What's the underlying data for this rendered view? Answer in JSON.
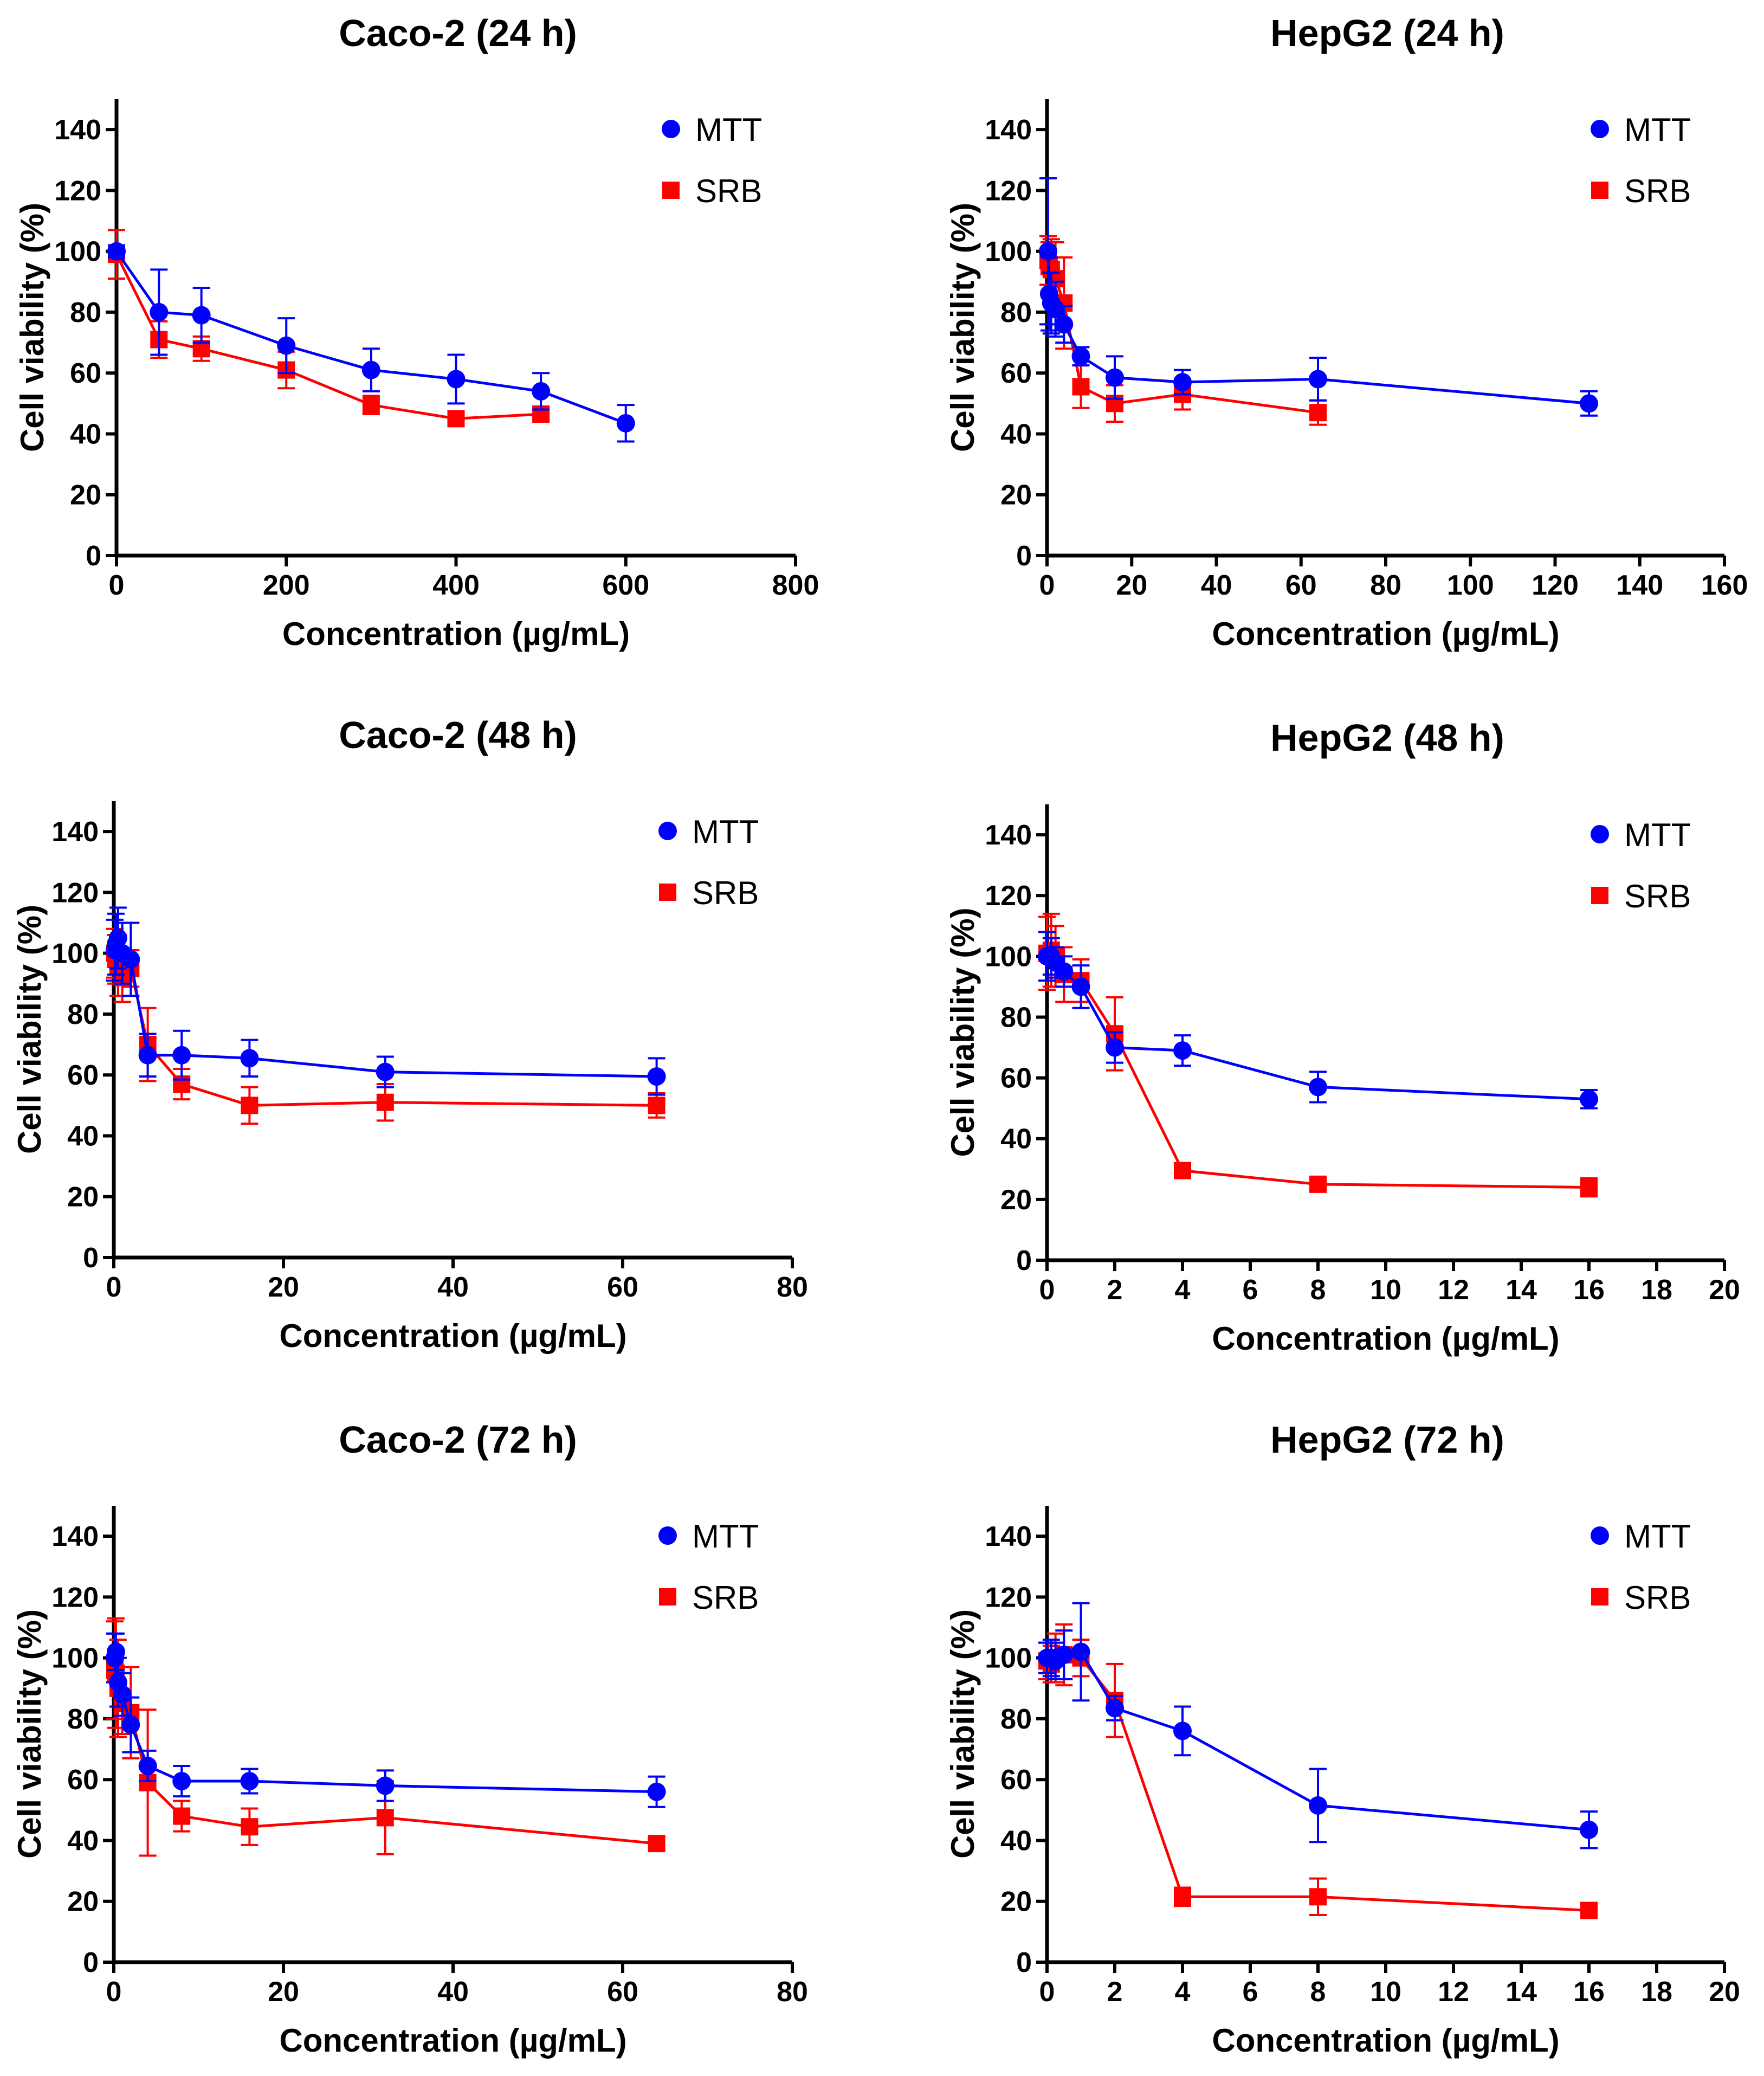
{
  "colors": {
    "mtt": "#0000ff",
    "srb": "#ff0000"
  },
  "legend": {
    "mtt": "MTT",
    "srb": "SRB"
  },
  "chart_data": [
    {
      "type": "line",
      "title": "Caco-2 (24 h)",
      "xlabel": "Concentration (µg/mL)",
      "ylabel": "Cell viability (%)",
      "xlim": [
        0,
        800
      ],
      "xticks": [
        0,
        200,
        400,
        600,
        800
      ],
      "ylim": [
        0,
        150
      ],
      "yticks": [
        0,
        20,
        40,
        60,
        80,
        100,
        120,
        140
      ],
      "legend_position": "top-right",
      "series": [
        {
          "name": "MTT",
          "x": [
            0,
            50,
            100,
            200,
            300,
            400,
            500,
            600
          ],
          "y": [
            100,
            80,
            79,
            69,
            61,
            58,
            54,
            43.5
          ],
          "err": [
            2,
            14,
            9,
            9,
            7,
            8,
            6,
            6
          ]
        },
        {
          "name": "SRB",
          "x": [
            0,
            50,
            100,
            200,
            300,
            400,
            500
          ],
          "y": [
            99,
            71,
            68,
            61,
            49.5,
            45,
            46.5
          ],
          "err": [
            8,
            6,
            4,
            6,
            3,
            2,
            2
          ]
        }
      ]
    },
    {
      "type": "line",
      "title": "HepG2 (24 h)",
      "xlabel": "Concentration (µg/mL)",
      "ylabel": "Cell viability (%)",
      "xlim": [
        0,
        160
      ],
      "xticks": [
        0,
        20,
        40,
        60,
        80,
        100,
        120,
        140,
        160
      ],
      "ylim": [
        0,
        150
      ],
      "yticks": [
        0,
        20,
        40,
        60,
        80,
        100,
        120,
        140
      ],
      "legend_position": "top-right",
      "series": [
        {
          "name": "MTT",
          "x": [
            0.25,
            0.5,
            1,
            2,
            4,
            8,
            16,
            32,
            64,
            128
          ],
          "y": [
            100,
            86,
            83,
            81,
            76,
            65.5,
            58.5,
            57,
            58,
            50
          ],
          "err": [
            24,
            12,
            10,
            9,
            6,
            3,
            7,
            4,
            7,
            4
          ]
        },
        {
          "name": "SRB",
          "x": [
            0.25,
            0.5,
            1,
            2,
            4,
            8,
            16,
            32,
            64
          ],
          "y": [
            97,
            95,
            94,
            91,
            83,
            55.5,
            50,
            53,
            47
          ],
          "err": [
            8,
            8,
            10,
            12,
            15,
            7,
            6,
            5,
            4
          ]
        }
      ]
    },
    {
      "type": "line",
      "title": "Caco-2 (48 h)",
      "xlabel": "Concentration (µg/mL)",
      "ylabel": "Cell viability (%)",
      "xlim": [
        0,
        80
      ],
      "xticks": [
        0,
        20,
        40,
        60,
        80
      ],
      "ylim": [
        0,
        150
      ],
      "yticks": [
        0,
        20,
        40,
        60,
        80,
        100,
        120,
        140
      ],
      "legend_position": "top-right",
      "series": [
        {
          "name": "MTT",
          "x": [
            0.125,
            0.25,
            0.5,
            1,
            2,
            4,
            8,
            16,
            32,
            64
          ],
          "y": [
            101,
            103,
            105,
            100,
            98,
            66.5,
            66.5,
            65.5,
            61,
            59.5
          ],
          "err": [
            10,
            10,
            10,
            10,
            12,
            7,
            8,
            6,
            5,
            6
          ]
        },
        {
          "name": "SRB",
          "x": [
            0.125,
            0.25,
            0.5,
            1,
            2,
            4,
            8,
            16,
            32,
            64
          ],
          "y": [
            100,
            98,
            96,
            92,
            95,
            70,
            57,
            50,
            51,
            50
          ],
          "err": [
            8,
            8,
            10,
            8,
            6,
            12,
            5,
            6,
            6,
            4
          ]
        }
      ]
    },
    {
      "type": "line",
      "title": "HepG2 (48 h)",
      "xlabel": "Concentration (µg/mL)",
      "ylabel": "Cell viability (%)",
      "xlim": [
        0,
        20
      ],
      "xticks": [
        0,
        2,
        4,
        6,
        8,
        10,
        12,
        14,
        16,
        18,
        20
      ],
      "ylim": [
        0,
        150
      ],
      "yticks": [
        0,
        20,
        40,
        60,
        80,
        100,
        120,
        140
      ],
      "legend_position": "top-right",
      "series": [
        {
          "name": "MTT",
          "x": [
            0,
            0.125,
            0.25,
            0.5,
            1,
            2,
            4,
            8,
            16
          ],
          "y": [
            100,
            100,
            98,
            95,
            90,
            70,
            69,
            57,
            53
          ],
          "err": [
            8,
            6,
            5,
            5,
            7,
            5,
            5,
            5,
            3
          ]
        },
        {
          "name": "SRB",
          "x": [
            0,
            0.125,
            0.25,
            0.5,
            1,
            2,
            4,
            8,
            16
          ],
          "y": [
            101,
            102,
            100,
            94,
            92,
            74.5,
            29.5,
            25,
            24
          ],
          "err": [
            12,
            12,
            10,
            9,
            7,
            12,
            2,
            2,
            3
          ]
        }
      ]
    },
    {
      "type": "line",
      "title": "Caco-2 (72 h)",
      "xlabel": "Concentration (µg/mL)",
      "ylabel": "Cell viability (%)",
      "xlim": [
        0,
        80
      ],
      "xticks": [
        0,
        20,
        40,
        60,
        80
      ],
      "ylim": [
        0,
        150
      ],
      "yticks": [
        0,
        20,
        40,
        60,
        80,
        100,
        120,
        140
      ],
      "legend_position": "top-right",
      "series": [
        {
          "name": "MTT",
          "x": [
            0.125,
            0.25,
            0.5,
            1,
            2,
            4,
            8,
            16,
            32,
            64
          ],
          "y": [
            100,
            102,
            92,
            88,
            78,
            64.5,
            59.5,
            59.5,
            58,
            56
          ],
          "err": [
            8,
            6,
            8,
            7,
            9,
            5,
            5,
            4,
            5,
            5
          ]
        },
        {
          "name": "SRB",
          "x": [
            0.125,
            0.25,
            0.5,
            1,
            2,
            4,
            8,
            16,
            32,
            64
          ],
          "y": [
            96,
            95,
            90,
            85,
            82,
            59,
            48,
            44.5,
            47.5,
            39
          ],
          "err": [
            16,
            18,
            16,
            10,
            15,
            24,
            5,
            6,
            12,
            2
          ]
        }
      ]
    },
    {
      "type": "line",
      "title": "HepG2 (72 h)",
      "xlabel": "Concentration (µg/mL)",
      "ylabel": "Cell viability (%)",
      "xlim": [
        0,
        20
      ],
      "xticks": [
        0,
        2,
        4,
        6,
        8,
        10,
        12,
        14,
        16,
        18,
        20
      ],
      "ylim": [
        0,
        150
      ],
      "yticks": [
        0,
        20,
        40,
        60,
        80,
        100,
        120,
        140
      ],
      "legend_position": "top-right",
      "series": [
        {
          "name": "MTT",
          "x": [
            0,
            0.125,
            0.25,
            0.5,
            1,
            2,
            4,
            8,
            16
          ],
          "y": [
            100,
            100,
            99,
            101,
            102,
            83.5,
            76,
            51.5,
            43.5
          ],
          "err": [
            5,
            6,
            6,
            8,
            16,
            4,
            8,
            12,
            6
          ]
        },
        {
          "name": "SRB",
          "x": [
            0,
            0.125,
            0.25,
            0.5,
            1,
            2,
            4,
            8,
            16
          ],
          "y": [
            99,
            98,
            100,
            101,
            100,
            86,
            21.5,
            21.5,
            17
          ],
          "err": [
            6,
            6,
            8,
            10,
            6,
            12,
            3,
            6,
            2
          ]
        }
      ]
    }
  ]
}
